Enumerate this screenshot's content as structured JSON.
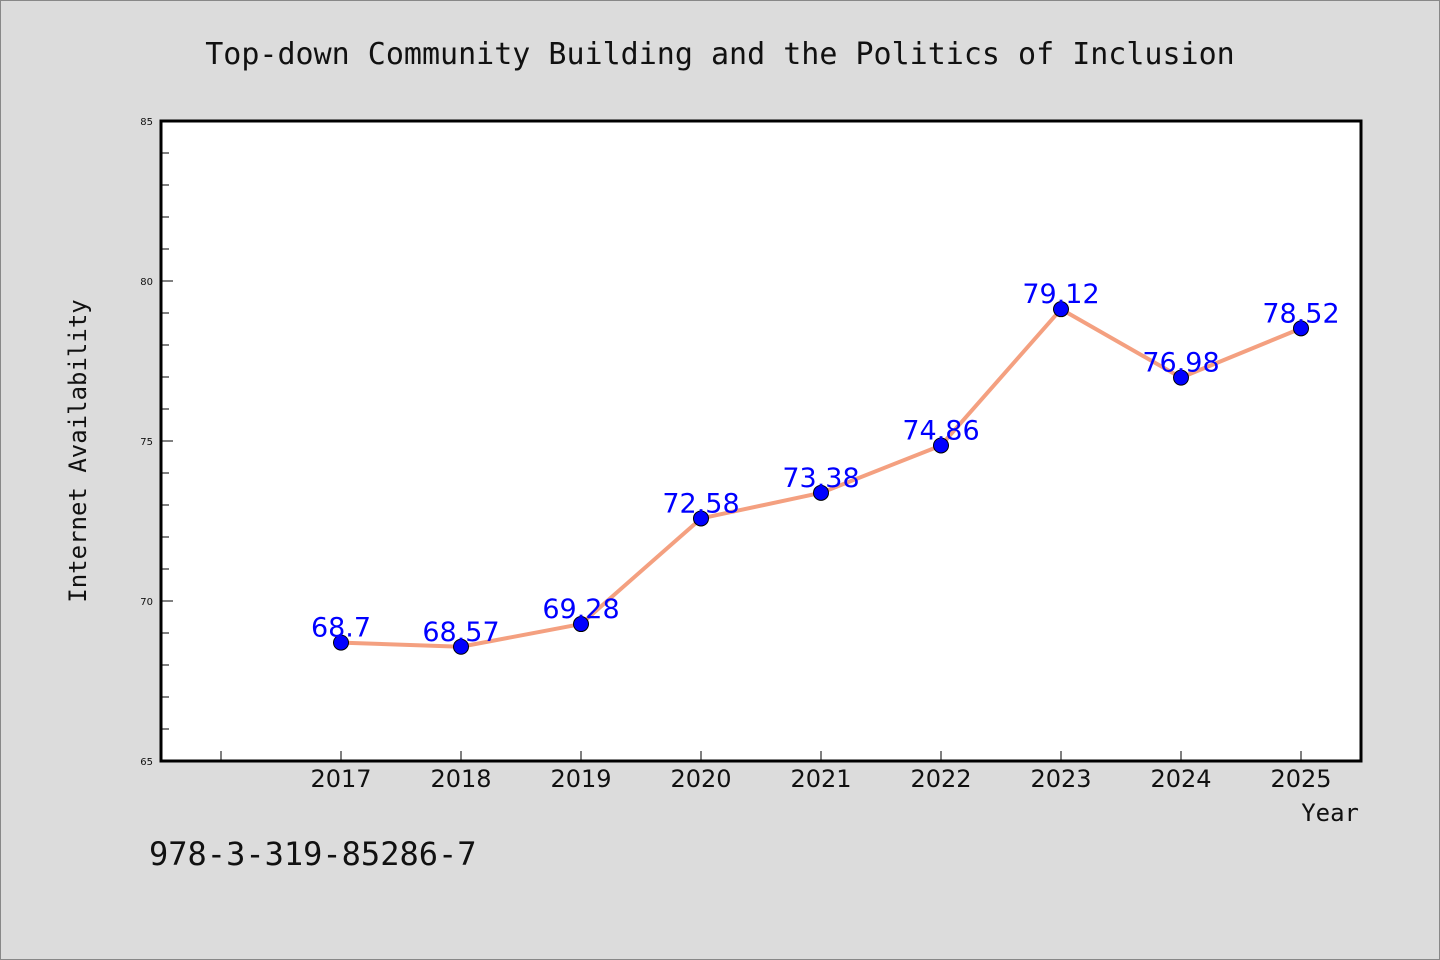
{
  "chart_data": {
    "type": "line",
    "title": "Top-down Community Building and the Politics of Inclusion",
    "xlabel": "Year",
    "ylabel": "Internet Availability",
    "categories": [
      "2017",
      "2018",
      "2019",
      "2020",
      "2021",
      "2022",
      "2023",
      "2024",
      "2025"
    ],
    "series": [
      {
        "values": [
          68.7,
          68.57,
          69.28,
          72.58,
          73.38,
          74.86,
          79.12,
          76.98,
          78.52
        ],
        "data_labels": [
          "68.7",
          "68.57",
          "69.28",
          "72.58",
          "73.38",
          "74.86",
          "79.12",
          "76.98",
          "78.52"
        ],
        "line_color": "#f4a080",
        "marker_color": "#0000ff"
      }
    ],
    "ylim": [
      65,
      85
    ],
    "yticks": [
      "65",
      "70",
      "75",
      "80",
      "85"
    ],
    "grid": false,
    "legend": "none",
    "background_color": "#dcdcdc",
    "plot_background_color": "#ffffff",
    "label_color": "#0000ff"
  },
  "footer": {
    "isbn": "978-3-319-85286-7"
  }
}
